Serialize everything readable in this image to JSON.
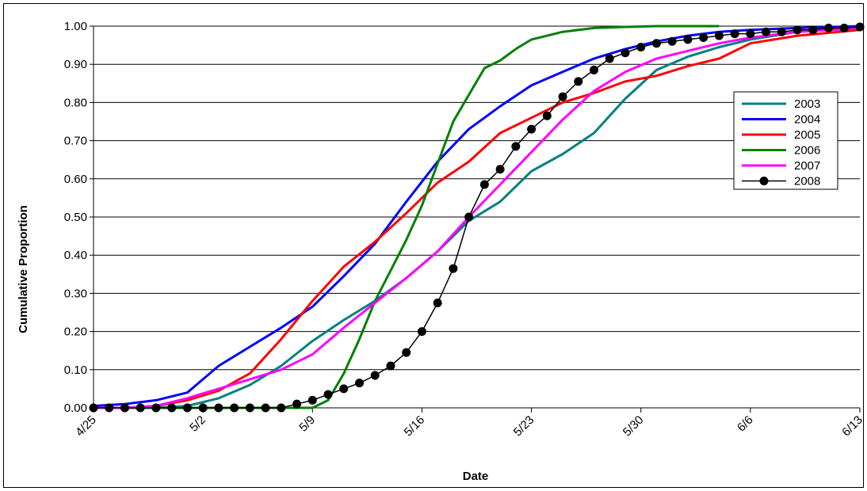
{
  "chart_data": {
    "type": "line",
    "title": "",
    "xlabel": "Date",
    "ylabel": "Cumulative Proportion",
    "x_tick_labels": [
      "4/25",
      "5/2",
      "5/9",
      "5/16",
      "5/23",
      "5/30",
      "6/6",
      "6/13"
    ],
    "y_tick_labels": [
      "0.00",
      "0.10",
      "0.20",
      "0.30",
      "0.40",
      "0.50",
      "0.60",
      "0.70",
      "0.80",
      "0.90",
      "1.00"
    ],
    "xlim": [
      "4/25",
      "6/13"
    ],
    "ylim": [
      0,
      1
    ],
    "grid": "horizontal",
    "legend_position": "right",
    "series": [
      {
        "name": "2003",
        "color": "#008080",
        "marker": "none",
        "x": [
          "4/25",
          "4/27",
          "4/29",
          "5/1",
          "5/3",
          "5/5",
          "5/7",
          "5/9",
          "5/11",
          "5/13",
          "5/15",
          "5/17",
          "5/19",
          "5/21",
          "5/23",
          "5/25",
          "5/27",
          "5/29",
          "5/31",
          "6/2",
          "6/4",
          "6/6",
          "6/9",
          "6/13"
        ],
        "y": [
          0.0,
          0.0,
          0.0,
          0.005,
          0.025,
          0.06,
          0.11,
          0.175,
          0.23,
          0.28,
          0.34,
          0.41,
          0.49,
          0.54,
          0.62,
          0.665,
          0.72,
          0.81,
          0.885,
          0.92,
          0.945,
          0.965,
          0.985,
          0.995
        ]
      },
      {
        "name": "2004",
        "color": "#0000FF",
        "marker": "none",
        "x": [
          "4/25",
          "4/27",
          "4/29",
          "5/1",
          "5/3",
          "5/5",
          "5/7",
          "5/9",
          "5/11",
          "5/13",
          "5/15",
          "5/17",
          "5/19",
          "5/21",
          "5/23",
          "5/25",
          "5/27",
          "5/29",
          "5/31",
          "6/2",
          "6/4",
          "6/6",
          "6/9",
          "6/13"
        ],
        "y": [
          0.005,
          0.01,
          0.02,
          0.04,
          0.11,
          0.16,
          0.21,
          0.265,
          0.345,
          0.43,
          0.54,
          0.645,
          0.73,
          0.79,
          0.845,
          0.88,
          0.915,
          0.94,
          0.96,
          0.975,
          0.985,
          0.99,
          0.995,
          1.0
        ]
      },
      {
        "name": "2005",
        "color": "#FF0000",
        "marker": "none",
        "x": [
          "4/25",
          "4/27",
          "4/29",
          "5/1",
          "5/3",
          "5/5",
          "5/7",
          "5/9",
          "5/11",
          "5/13",
          "5/15",
          "5/17",
          "5/19",
          "5/21",
          "5/23",
          "5/25",
          "5/27",
          "5/29",
          "5/31",
          "6/2",
          "6/4",
          "6/6",
          "6/9",
          "6/13"
        ],
        "y": [
          0.0,
          0.0,
          0.005,
          0.02,
          0.045,
          0.09,
          0.18,
          0.28,
          0.37,
          0.435,
          0.51,
          0.59,
          0.645,
          0.72,
          0.76,
          0.8,
          0.825,
          0.855,
          0.87,
          0.895,
          0.915,
          0.955,
          0.975,
          0.99
        ]
      },
      {
        "name": "2006",
        "color": "#008000",
        "marker": "none",
        "x": [
          "4/25",
          "5/1",
          "5/5",
          "5/8",
          "5/9",
          "5/10",
          "5/11",
          "5/12",
          "5/13",
          "5/14",
          "5/15",
          "5/16",
          "5/17",
          "5/18",
          "5/19",
          "5/20",
          "5/21",
          "5/22",
          "5/23",
          "5/25",
          "5/27",
          "5/29",
          "5/31",
          "6/4"
        ],
        "y": [
          0.0,
          0.0,
          0.0,
          0.0,
          0.0,
          0.02,
          0.09,
          0.18,
          0.28,
          0.36,
          0.44,
          0.53,
          0.64,
          0.75,
          0.82,
          0.89,
          0.91,
          0.94,
          0.965,
          0.985,
          0.995,
          0.998,
          1.0,
          1.0
        ]
      },
      {
        "name": "2007",
        "color": "#FF00FF",
        "marker": "none",
        "x": [
          "4/25",
          "4/27",
          "4/29",
          "5/1",
          "5/3",
          "5/5",
          "5/7",
          "5/9",
          "5/11",
          "5/13",
          "5/15",
          "5/17",
          "5/19",
          "5/21",
          "5/23",
          "5/25",
          "5/27",
          "5/29",
          "5/31",
          "6/2",
          "6/4",
          "6/6",
          "6/9",
          "6/13"
        ],
        "y": [
          0.0,
          0.0,
          0.005,
          0.025,
          0.05,
          0.075,
          0.1,
          0.14,
          0.21,
          0.275,
          0.34,
          0.41,
          0.5,
          0.585,
          0.67,
          0.755,
          0.83,
          0.88,
          0.915,
          0.935,
          0.955,
          0.97,
          0.985,
          0.995
        ]
      },
      {
        "name": "2008",
        "color": "#000000",
        "marker": "circle",
        "x": [
          "4/25",
          "4/26",
          "4/27",
          "4/28",
          "4/29",
          "4/30",
          "5/1",
          "5/2",
          "5/3",
          "5/4",
          "5/5",
          "5/6",
          "5/7",
          "5/8",
          "5/9",
          "5/10",
          "5/11",
          "5/12",
          "5/13",
          "5/14",
          "5/15",
          "5/16",
          "5/17",
          "5/18",
          "5/19",
          "5/20",
          "5/21",
          "5/22",
          "5/23",
          "5/24",
          "5/25",
          "5/26",
          "5/27",
          "5/28",
          "5/29",
          "5/30",
          "5/31",
          "6/1",
          "6/2",
          "6/3",
          "6/4",
          "6/5",
          "6/6",
          "6/7",
          "6/8",
          "6/9",
          "6/10",
          "6/11",
          "6/12",
          "6/13"
        ],
        "y": [
          0.0,
          0.0,
          0.0,
          0.0,
          0.0,
          0.0,
          0.0,
          0.0,
          0.0,
          0.0,
          0.0,
          0.0,
          0.0,
          0.01,
          0.02,
          0.035,
          0.05,
          0.065,
          0.085,
          0.11,
          0.145,
          0.2,
          0.275,
          0.365,
          0.5,
          0.585,
          0.625,
          0.685,
          0.73,
          0.765,
          0.815,
          0.855,
          0.885,
          0.915,
          0.93,
          0.945,
          0.955,
          0.96,
          0.965,
          0.97,
          0.975,
          0.98,
          0.98,
          0.985,
          0.985,
          0.99,
          0.99,
          0.995,
          0.995,
          0.998
        ]
      }
    ]
  }
}
